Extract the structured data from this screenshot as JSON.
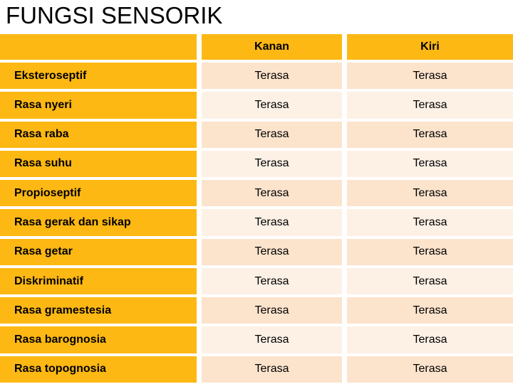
{
  "page": {
    "title": "FUNGSI SENSORIK"
  },
  "table": {
    "columns": [
      "",
      "Kanan",
      "Kiri"
    ],
    "rows": [
      {
        "label": "Eksteroseptif",
        "kanan": "Terasa",
        "kiri": "Terasa"
      },
      {
        "label": "Rasa nyeri",
        "kanan": "Terasa",
        "kiri": "Terasa"
      },
      {
        "label": "Rasa raba",
        "kanan": "Terasa",
        "kiri": "Terasa"
      },
      {
        "label": "Rasa suhu",
        "kanan": "Terasa",
        "kiri": "Terasa"
      },
      {
        "label": "Propioseptif",
        "kanan": "Terasa",
        "kiri": "Terasa"
      },
      {
        "label": "Rasa gerak dan sikap",
        "kanan": "Terasa",
        "kiri": "Terasa"
      },
      {
        "label": "Rasa getar",
        "kanan": "Terasa",
        "kiri": "Terasa"
      },
      {
        "label": "Diskriminatif",
        "kanan": "Terasa",
        "kiri": "Terasa"
      },
      {
        "label": "Rasa gramestesia",
        "kanan": "Terasa",
        "kiri": "Terasa"
      },
      {
        "label": "Rasa barognosia",
        "kanan": "Terasa",
        "kiri": "Terasa"
      },
      {
        "label": "Rasa topognosia",
        "kanan": "Terasa",
        "kiri": "Terasa"
      }
    ]
  },
  "colors": {
    "accent_orange": "#fdb813",
    "row_peach_dark": "#fce3cc",
    "row_peach_light": "#fdf1e6",
    "text_black": "#000000",
    "background_white": "#ffffff"
  }
}
